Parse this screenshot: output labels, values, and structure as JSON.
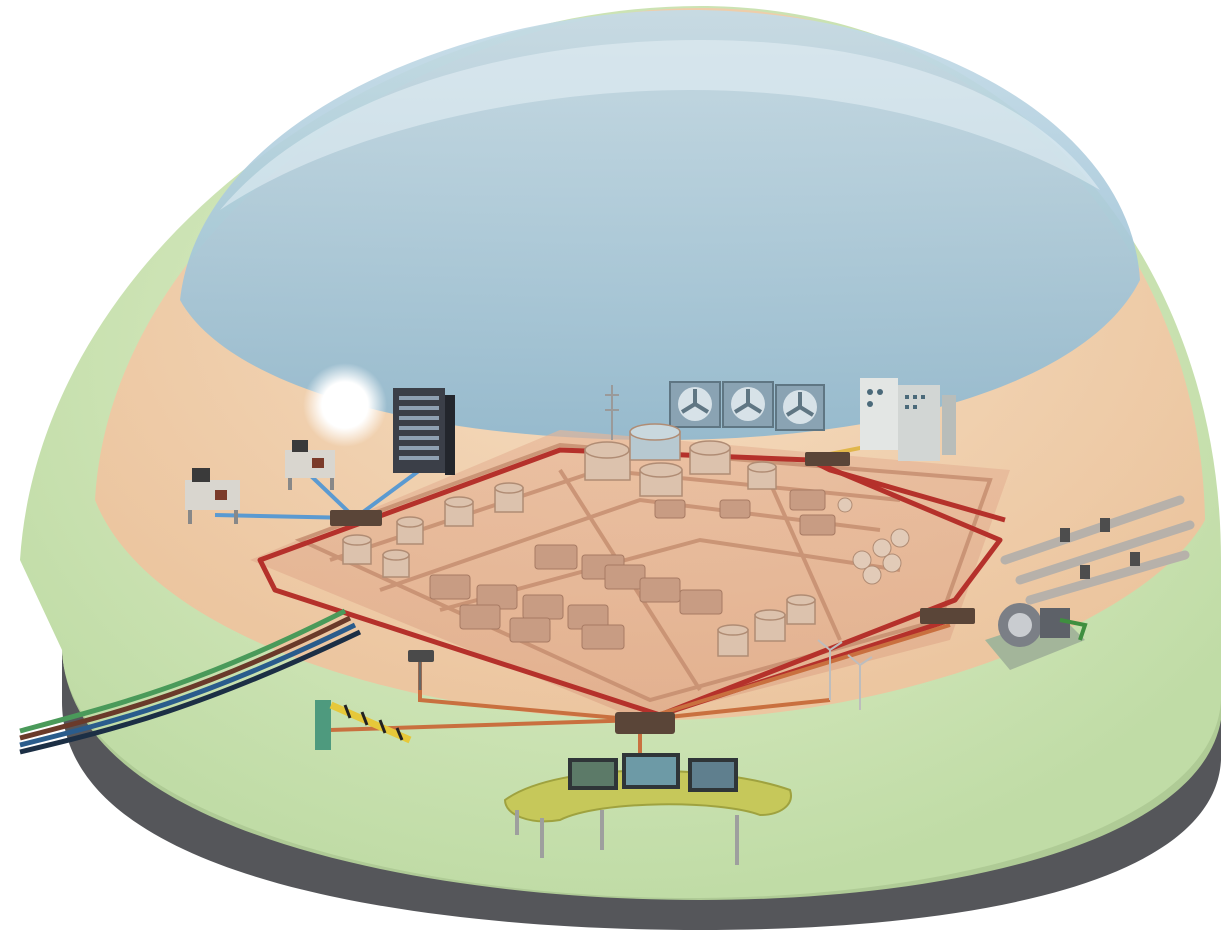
{
  "colors": {
    "background": "#ffffff",
    "base_plate": "#5a5a5e",
    "zone_outer": "#cfe3b8",
    "zone_outer_edge": "#a9c98f",
    "zone_middle": "#f2c9a6",
    "zone_inner": "#e8b89a",
    "dome_inner": "#a9c9da",
    "dome_highlight": "#dbeaf2",
    "red_network": "#b5312b",
    "orange_network": "#c9703f",
    "blue_network": "#5b9ad1",
    "yellow_network": "#e0b64a",
    "facility": "#d8b49a",
    "facility_dark": "#b08c74",
    "console": "#c6c85a"
  },
  "zones": [
    {
      "name": "outer-perimeter-zone",
      "color_key": "zone_outer"
    },
    {
      "name": "plant-zone",
      "color_key": "zone_middle"
    },
    {
      "name": "protected-core-zone",
      "color_key": "dome_inner"
    }
  ],
  "icons": [
    "glowing-light-icon",
    "server-rack-icon",
    "office-desk-icon",
    "cooling-fan-icon",
    "control-cabinet-icon",
    "storage-tank-icon",
    "network-switch-icon",
    "pipeline-icon",
    "turbine-icon",
    "boom-barrier-icon",
    "security-camera-icon",
    "wind-turbine-icon",
    "control-console-icon",
    "monitor-icon",
    "cable-bundle-icon",
    "antenna-tower-icon"
  ]
}
